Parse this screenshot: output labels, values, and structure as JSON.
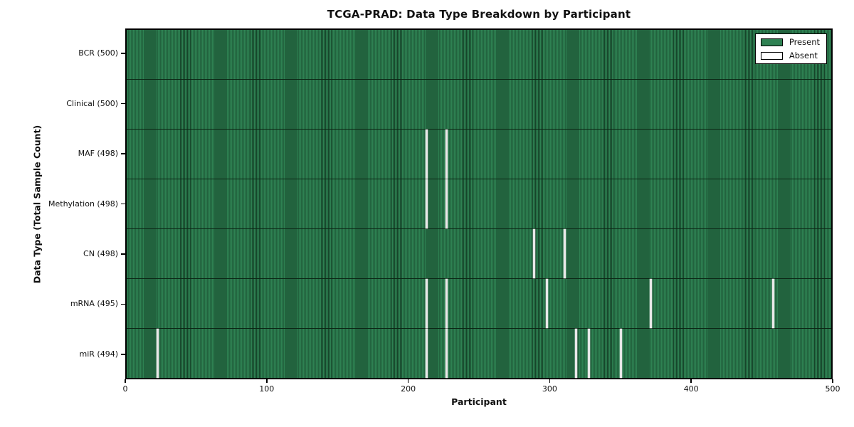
{
  "chart_data": {
    "type": "heatmap",
    "title": "TCGA-PRAD: Data Type Breakdown by Participant",
    "xlabel": "Participant",
    "ylabel": "Data Type (Total Sample Count)",
    "xlim": [
      0,
      500
    ],
    "x_ticks": [
      0,
      100,
      200,
      300,
      400,
      500
    ],
    "legend_position": "upper right",
    "legend": [
      {
        "label": "Present",
        "swatch_color": "#2e8152"
      },
      {
        "label": "Absent",
        "swatch_color": "#ffffff"
      }
    ],
    "rows": [
      {
        "label": "BCR (500)",
        "data_type": "BCR",
        "present_count": 500,
        "absent_participants": []
      },
      {
        "label": "Clinical (500)",
        "data_type": "Clinical",
        "present_count": 500,
        "absent_participants": []
      },
      {
        "label": "MAF (498)",
        "data_type": "MAF",
        "present_count": 498,
        "absent_participants": [
          213,
          227
        ]
      },
      {
        "label": "Methylation (498)",
        "data_type": "Methylation",
        "present_count": 498,
        "absent_participants": [
          213,
          227
        ]
      },
      {
        "label": "CN (498)",
        "data_type": "CN",
        "present_count": 498,
        "absent_participants": [
          289,
          311
        ]
      },
      {
        "label": "mRNA (495)",
        "data_type": "mRNA",
        "present_count": 495,
        "absent_participants": [
          213,
          227,
          298,
          372,
          459
        ]
      },
      {
        "label": "miR (494)",
        "data_type": "miR",
        "present_count": 494,
        "absent_participants": [
          22,
          213,
          227,
          319,
          328,
          351
        ]
      }
    ],
    "colors": {
      "present_fill": "#2e8152",
      "present_cell_edge": "#16452a",
      "absent_line": "#e8e8e8",
      "row_divider": "#0c2615",
      "axis_border": "#000000",
      "background": "#ffffff"
    }
  }
}
